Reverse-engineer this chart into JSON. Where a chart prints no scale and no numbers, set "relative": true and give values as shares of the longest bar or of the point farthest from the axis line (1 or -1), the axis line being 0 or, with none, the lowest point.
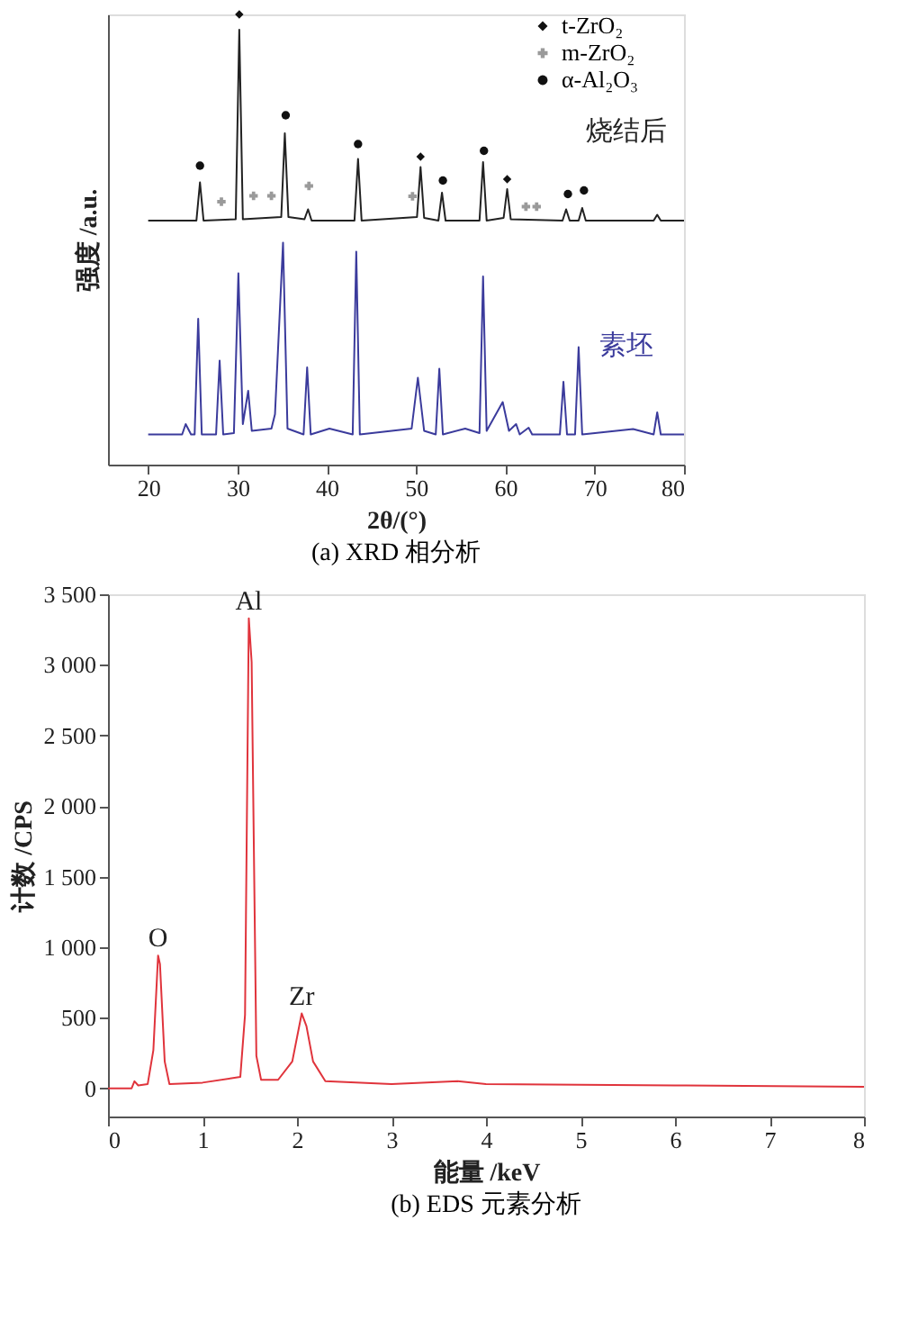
{
  "chart_data": [
    {
      "type": "line",
      "title": "(a) XRD 相分析",
      "xlabel": "2θ/(°)",
      "ylabel": "强度 /a.u.",
      "relative": true,
      "xlim": [
        15.5,
        80
      ],
      "xticks": [
        20,
        30,
        40,
        50,
        60,
        70,
        80
      ],
      "grid": false,
      "legend": "top right",
      "series": [
        {
          "name": "烧结后",
          "type": "line",
          "color": "#222222",
          "x": [
            20,
            25.4,
            25.8,
            26.2,
            29.8,
            30.2,
            30.6,
            34.9,
            35.3,
            35.7,
            37.5,
            37.9,
            38.3,
            43.1,
            43.5,
            43.9,
            50.1,
            50.5,
            50.9,
            52.5,
            52.9,
            53.3,
            57.1,
            57.5,
            57.9,
            59.8,
            60.2,
            60.6,
            66.4,
            66.8,
            67.2,
            68.2,
            68.6,
            69.0,
            76.6,
            77,
            77.4,
            80
          ],
          "values": [
            0.542,
            0.542,
            0.627,
            0.542,
            0.545,
            0.966,
            0.545,
            0.55,
            0.736,
            0.55,
            0.545,
            0.567,
            0.542,
            0.542,
            0.679,
            0.542,
            0.55,
            0.661,
            0.548,
            0.542,
            0.604,
            0.542,
            0.542,
            0.672,
            0.542,
            0.548,
            0.612,
            0.545,
            0.542,
            0.567,
            0.542,
            0.542,
            0.57,
            0.542,
            0.542,
            0.555,
            0.542,
            0.542
          ]
        },
        {
          "name": "素坯",
          "type": "line",
          "color": "#3b3b9c",
          "x": [
            20,
            23.8,
            24.2,
            24.8,
            25.2,
            25.6,
            26.0,
            27.6,
            28,
            28.4,
            29.6,
            30.1,
            30.6,
            31.2,
            31.6,
            33.8,
            34.2,
            35.1,
            35.6,
            37.4,
            37.8,
            38.2,
            40.3,
            42.9,
            43.3,
            43.7,
            49.5,
            50.2,
            50.9,
            52.2,
            52.6,
            53.0,
            55.5,
            57.1,
            57.5,
            57.9,
            59.7,
            60.4,
            61.2,
            61.6,
            62.6,
            63,
            66.1,
            66.5,
            66.9,
            67.8,
            68.2,
            68.6,
            74.3,
            76.6,
            77,
            77.4,
            80
          ],
          "values": [
            0.067,
            0.067,
            0.09,
            0.067,
            0.067,
            0.324,
            0.067,
            0.067,
            0.231,
            0.067,
            0.07,
            0.425,
            0.09,
            0.164,
            0.075,
            0.08,
            0.112,
            0.493,
            0.08,
            0.067,
            0.216,
            0.067,
            0.08,
            0.067,
            0.473,
            0.067,
            0.08,
            0.193,
            0.075,
            0.067,
            0.213,
            0.067,
            0.08,
            0.07,
            0.418,
            0.075,
            0.139,
            0.075,
            0.09,
            0.067,
            0.082,
            0.067,
            0.067,
            0.184,
            0.067,
            0.067,
            0.261,
            0.067,
            0.079,
            0.067,
            0.116,
            0.067,
            0.067
          ]
        },
        {
          "name": "t-ZrO₂",
          "type": "scatter",
          "marker": "diamond",
          "color": "#111111",
          "x": [
            30.2,
            50.5,
            60.2
          ],
          "values": [
            1.0,
            0.684,
            0.634
          ]
        },
        {
          "name": "m-ZrO₂",
          "type": "scatter",
          "marker": "cross",
          "color": "#9a9a9a",
          "x": [
            28.2,
            31.8,
            33.8,
            38,
            49.6,
            62.3,
            63.5
          ],
          "values": [
            0.584,
            0.597,
            0.597,
            0.619,
            0.596,
            0.573,
            0.573
          ]
        },
        {
          "name": "α-Al₂O₃",
          "type": "scatter",
          "marker": "circle",
          "color": "#111111",
          "x": [
            25.8,
            35.4,
            43.5,
            53,
            57.6,
            67,
            68.8
          ],
          "values": [
            0.664,
            0.776,
            0.712,
            0.631,
            0.697,
            0.601,
            0.609
          ]
        }
      ]
    },
    {
      "type": "line",
      "title": "(b) EDS 元素分析",
      "xlabel": "能量 /keV",
      "ylabel": "计数 /CPS",
      "xlim": [
        0,
        8
      ],
      "ylim": [
        -200,
        3500
      ],
      "xticks": [
        0,
        1,
        2,
        3,
        4,
        5,
        6,
        7,
        8
      ],
      "yticks": [
        0,
        500,
        {
          "value": 1000,
          "label": "1 000"
        },
        {
          "value": 1500,
          "label": "1 500"
        },
        {
          "value": 2000,
          "label": "2 000"
        },
        {
          "value": 2500,
          "label": "2 500"
        },
        {
          "value": 3000,
          "label": "3 000"
        },
        {
          "value": 3500,
          "label": "3 500"
        }
      ],
      "grid": false,
      "series": [
        {
          "type": "line",
          "color": "#e0343c",
          "x": [
            0,
            0.25,
            0.28,
            0.32,
            0.42,
            0.48,
            0.53,
            0.55,
            0.6,
            0.65,
            1.0,
            1.4,
            1.45,
            1.49,
            1.52,
            1.57,
            1.62,
            1.8,
            1.95,
            2.05,
            2.1,
            2.17,
            2.3,
            3.0,
            3.7,
            4.0,
            6,
            8
          ],
          "values": [
            0,
            0,
            50,
            20,
            30,
            270,
            940,
            880,
            190,
            30,
            40,
            80,
            520,
            3330,
            3020,
            230,
            60,
            60,
            190,
            530,
            440,
            190,
            50,
            30,
            50,
            30,
            20,
            10
          ]
        }
      ],
      "annotations": [
        {
          "text": "O",
          "x": 0.53,
          "y": 940
        },
        {
          "text": "Al",
          "x": 1.49,
          "y": 3330
        },
        {
          "text": "Zr",
          "x": 2.05,
          "y": 530
        }
      ]
    }
  ]
}
